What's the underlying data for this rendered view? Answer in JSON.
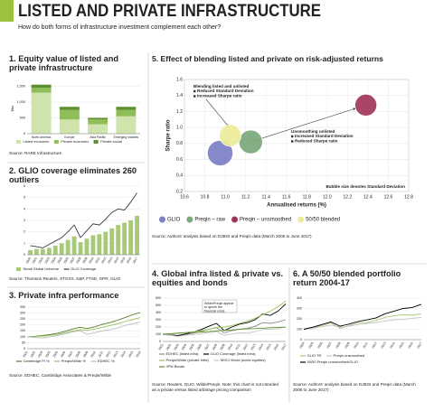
{
  "header": {
    "title": "LISTED AND PRIVATE INFRASTRUCTURE",
    "subtitle": "How do both forms of infrastructure investment complement each other?"
  },
  "chart_data": [
    {
      "type": "bar",
      "title": "1. Equity value of listed and private infrastructure",
      "ylabel": "$bn",
      "categories": [
        "North America",
        "Europe",
        "Asia Pacific",
        "Emerging markets"
      ],
      "series": [
        {
          "name": "Listed economic",
          "color": "#cfe3ac",
          "values": [
            1300,
            450,
            300,
            550
          ]
        },
        {
          "name": "Private economic",
          "color": "#8fbd57",
          "values": [
            150,
            300,
            150,
            200
          ]
        },
        {
          "name": "Private social",
          "color": "#5e8f2e",
          "values": [
            100,
            100,
            50,
            100
          ]
        }
      ],
      "ylim": [
        0,
        1600
      ],
      "yticks": [
        0,
        500,
        {
          "value": 1000,
          "label": "1,000"
        },
        {
          "value": 1500,
          "label": "1,500"
        }
      ],
      "grid": true,
      "source": "Source: RARE Infrastructure"
    },
    {
      "type": "bar-line",
      "title": "2. GLIO coverage eliminates 260 outliers",
      "categories": [
        "2000",
        "2001",
        "2002",
        "2003",
        "2004",
        "2005",
        "2006",
        "2007",
        "2008",
        "2009",
        "2010",
        "2011",
        "2012",
        "2013",
        "2014",
        "2015",
        "2016",
        "2017"
      ],
      "series": [
        {
          "name": "Small Global Universe",
          "type": "bar",
          "color": "#a8c97a",
          "values": [
            0.4,
            0.5,
            0.5,
            0.6,
            0.8,
            1.0,
            1.3,
            1.6,
            1.1,
            1.4,
            1.7,
            1.8,
            2.0,
            2.3,
            2.6,
            2.8,
            3.0,
            3.4
          ]
        },
        {
          "name": "GLIO Coverage",
          "type": "line",
          "color": "#3d3d3d",
          "values": [
            0.8,
            0.7,
            0.6,
            0.9,
            1.2,
            1.5,
            2.0,
            2.6,
            1.5,
            2.1,
            2.7,
            2.6,
            3.1,
            3.7,
            4.0,
            3.9,
            4.6,
            5.4
          ]
        }
      ],
      "ylim": [
        0,
        6
      ],
      "yticks": [
        0,
        1,
        2,
        3,
        4,
        5,
        6
      ],
      "grid": true,
      "source": "Source: Thomson Reuters, STOXX, S&P, FTSE, GPR, GLIO"
    },
    {
      "type": "line",
      "title": "3. Private infra performance",
      "categories": [
        "2001",
        "2002",
        "2003",
        "2004",
        "2005",
        "2006",
        "2007",
        "2008",
        "2009",
        "2010",
        "2011",
        "2012",
        "2013",
        "2014",
        "2015",
        "2016"
      ],
      "series": [
        {
          "name": "Cambridge PI %",
          "color": "#5a7d2a",
          "values": [
            100,
            104,
            110,
            118,
            130,
            145,
            165,
            180,
            170,
            185,
            205,
            220,
            240,
            262,
            285,
            305
          ]
        },
        {
          "name": "Preqin/Wilde %",
          "color": "#98c25a",
          "values": [
            100,
            102,
            106,
            112,
            120,
            132,
            148,
            160,
            155,
            165,
            180,
            195,
            210,
            228,
            245,
            262
          ]
        },
        {
          "name": "EDHEC %",
          "color": "#bdbdbd",
          "values": [
            100,
            95,
            90,
            98,
            110,
            125,
            140,
            150,
            120,
            135,
            150,
            160,
            175,
            195,
            210,
            225
          ]
        }
      ],
      "ylim": [
        0,
        350
      ],
      "yticks": [
        0,
        50,
        100,
        150,
        200,
        250,
        300,
        350
      ],
      "grid": true,
      "source": "Source: EDHEC, Cambridge Associates & Preqin/Wilde"
    },
    {
      "type": "line",
      "title": "4. Global infra listed & private vs. equities and bonds",
      "annotation": "Wilde/Preqin appear to ignore the financial crisis",
      "categories": [
        "2001",
        "2002",
        "2003",
        "2004",
        "2005",
        "2006",
        "2007",
        "2008",
        "2009",
        "2010",
        "2011",
        "2012",
        "2013",
        "2014",
        "2015",
        "2016",
        "2017"
      ],
      "series": [
        {
          "name": "EDHEC (listed infra)",
          "color": "#8a8a8a",
          "values": [
            100,
            90,
            80,
            95,
            115,
            140,
            170,
            190,
            120,
            150,
            170,
            180,
            210,
            260,
            250,
            270,
            300
          ]
        },
        {
          "name": "GLIO Coverage (listed infra)",
          "color": "#000000",
          "values": [
            100,
            88,
            82,
            105,
            130,
            165,
            210,
            250,
            150,
            200,
            240,
            260,
            300,
            380,
            360,
            420,
            520
          ]
        },
        {
          "name": "Preqin/Wilde (private infra)",
          "color": "#9bc55a",
          "values": [
            100,
            105,
            112,
            122,
            135,
            150,
            170,
            195,
            200,
            220,
            250,
            280,
            320,
            370,
            420,
            480,
            560
          ]
        },
        {
          "name": "MSCI World (world equities)",
          "color": "#c6c6c6",
          "values": [
            100,
            85,
            70,
            85,
            95,
            110,
            125,
            135,
            85,
            105,
            120,
            115,
            135,
            165,
            170,
            175,
            205
          ]
        },
        {
          "name": "JPM Bonds",
          "color": "#5e8f2e",
          "values": [
            100,
            108,
            116,
            122,
            126,
            130,
            136,
            145,
            155,
            160,
            168,
            175,
            178,
            182,
            190,
            195,
            198
          ]
        }
      ],
      "ylim": [
        0,
        600
      ],
      "yticks": [
        0,
        100,
        200,
        300,
        400,
        500,
        600
      ],
      "grid": true,
      "source": "Source: Reuters, GLIO, Wilde/Preqin. Note: this chart is not intended as a private versus listed arbitrage pricing comparison"
    },
    {
      "type": "scatter",
      "title": "5. Effect of blending listed and private on risk-adjusted returns",
      "xlabel": "Annualised returns (%)",
      "ylabel": "Sharpe ratio",
      "series": [
        {
          "name": "GLIO",
          "color": "#7b7fc4",
          "x": [
            10.95
          ],
          "values": [
            0.68
          ],
          "sizes": [
            14
          ]
        },
        {
          "name": "Preqin – raw",
          "color": "#7aa87a",
          "x": [
            11.25
          ],
          "values": [
            0.82
          ],
          "sizes": [
            13
          ]
        },
        {
          "name": "Preqin – unsmoothed",
          "color": "#a0365a",
          "x": [
            12.38
          ],
          "values": [
            1.28
          ],
          "sizes": [
            12
          ]
        },
        {
          "name": "50/50 blended",
          "color": "#ecec9a",
          "x": [
            11.05
          ],
          "values": [
            0.9
          ],
          "sizes": [
            12
          ]
        }
      ],
      "annotations": [
        {
          "title": "Blending listed and unlisted",
          "items": [
            "Reduced Standard Deviation",
            "Increased Sharpe ratio"
          ]
        },
        {
          "title": "Unsmoothing unlisted",
          "items": [
            "Increased Standard Deviation",
            "Reduced Sharpe ratio"
          ]
        }
      ],
      "note": "Bubble size denotes Standard Deviation",
      "xlim": [
        10.6,
        12.8
      ],
      "xticks": [
        10.6,
        10.8,
        {
          "value": 11,
          "label": "11.0"
        },
        11.2,
        11.4,
        11.6,
        11.8,
        {
          "value": 12,
          "label": "12.0"
        },
        12.2,
        12.4,
        12.6,
        12.8
      ],
      "ylim": [
        0.2,
        1.6
      ],
      "yticks": [
        0.2,
        0.4,
        0.6,
        0.8,
        {
          "value": 1,
          "label": "1.0"
        },
        1.2,
        1.4,
        1.6
      ],
      "grid": true,
      "source": "Source: Authors' analysis based on DJBGI and Preqin data (March 2006 to June 2017)"
    },
    {
      "type": "line",
      "title": "6. A 50/50 blended portfolio return 2004-17",
      "categories": [
        "2004",
        "2005",
        "2006",
        "2007",
        "2008",
        "2009",
        "2010",
        "2011",
        "2012",
        "2013",
        "2014",
        "2015",
        "2016",
        "2017"
      ],
      "series": [
        {
          "name": "GLIO TR",
          "color": "#a8c97a",
          "values": [
            100,
            115,
            135,
            160,
            110,
            135,
            160,
            165,
            185,
            215,
            230,
            240,
            235,
            250
          ]
        },
        {
          "name": "Preqin unsmoothed",
          "color": "#c4c4c4",
          "values": [
            100,
            110,
            125,
            140,
            120,
            130,
            145,
            155,
            165,
            180,
            190,
            195,
            205,
            215
          ]
        },
        {
          "name": "50/50 Preqin unsmoothed/GLIO",
          "color": "#000000",
          "values": [
            100,
            120,
            145,
            170,
            130,
            150,
            175,
            190,
            210,
            250,
            275,
            300,
            310,
            340
          ]
        }
      ],
      "ylim": [
        0,
        400
      ],
      "yticks": [
        0,
        100,
        200,
        300,
        400
      ],
      "grid": true,
      "source": "Source: Authors' analysis based on DJBGI and Preqin data (March 2006 to June 2017)"
    }
  ]
}
